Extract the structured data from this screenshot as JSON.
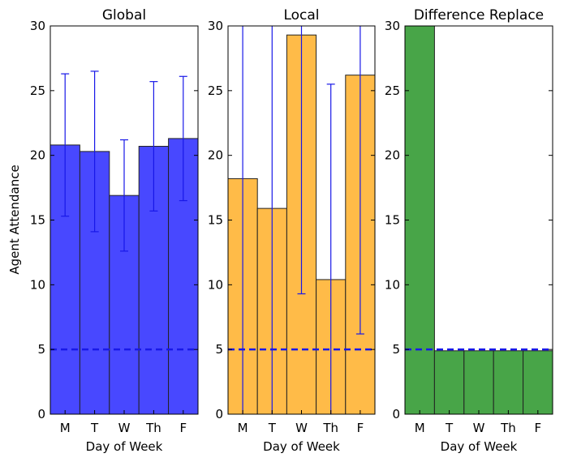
{
  "figure": {
    "ylabel": "Agent Attendance"
  },
  "chart_data": [
    {
      "type": "bar",
      "title": "Global",
      "categories": [
        "M",
        "T",
        "W",
        "Th",
        "F"
      ],
      "values": [
        20.8,
        20.3,
        16.9,
        20.7,
        21.3
      ],
      "error": [
        5.5,
        6.2,
        4.3,
        5.0,
        4.8
      ],
      "bar_color": "#4848ff",
      "error_color": "#1818e8",
      "reference_line": 5,
      "xlabel": "Day of Week",
      "ylabel": "Agent Attendance",
      "ylim": [
        0,
        30
      ],
      "yticks": [
        "0",
        "5",
        "10",
        "15",
        "20",
        "25",
        "30"
      ]
    },
    {
      "type": "bar",
      "title": "Local",
      "categories": [
        "M",
        "T",
        "W",
        "Th",
        "F"
      ],
      "values": [
        18.2,
        15.9,
        29.3,
        10.4,
        26.2
      ],
      "error": [
        20,
        20,
        20,
        15.1,
        20
      ],
      "bar_color": "#ffbb48",
      "error_color": "#1818e8",
      "reference_line": 5,
      "xlabel": "Day of Week",
      "ylabel": "",
      "ylim": [
        0,
        30
      ],
      "yticks": [
        "0",
        "5",
        "10",
        "15",
        "20",
        "25",
        "30"
      ]
    },
    {
      "type": "bar",
      "title": "Difference Replace",
      "categories": [
        "M",
        "T",
        "W",
        "Th",
        "F"
      ],
      "values": [
        30,
        4.9,
        4.9,
        4.9,
        4.9
      ],
      "error": [],
      "bar_color": "#48a548",
      "error_color": "#1818e8",
      "reference_line": 5,
      "xlabel": "Day of Week",
      "ylabel": "",
      "ylim": [
        0,
        30
      ],
      "yticks": [
        "0",
        "5",
        "10",
        "15",
        "20",
        "25",
        "30"
      ]
    }
  ],
  "colors": {
    "reference_line": "#1818e8",
    "bar_edge": "#222222",
    "axis": "#000000"
  }
}
